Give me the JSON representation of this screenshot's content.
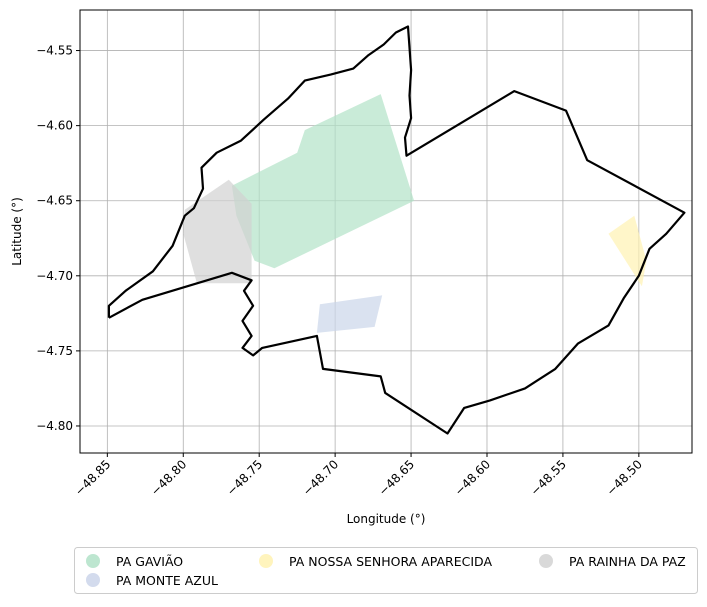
{
  "chart_data": {
    "type": "map",
    "xlabel": "Longitude (°)",
    "ylabel": "Latitude (°)",
    "xlim": [
      -48.868,
      -48.465
    ],
    "ylim": [
      -4.818,
      -4.523
    ],
    "xticks": [
      -48.85,
      -48.8,
      -48.75,
      -48.7,
      -48.65,
      -48.6,
      -48.55,
      -48.5
    ],
    "xtick_labels": [
      "−48.85",
      "−48.80",
      "−48.75",
      "−48.70",
      "−48.65",
      "−48.60",
      "−48.55",
      "−48.50"
    ],
    "yticks": [
      -4.55,
      -4.6,
      -4.65,
      -4.7,
      -4.75,
      -4.8
    ],
    "ytick_labels": [
      "−4.55",
      "−4.60",
      "−4.65",
      "−4.70",
      "−4.75",
      "−4.80"
    ],
    "grid": true,
    "legend_position": "bottom",
    "boundary_color": "#000000",
    "boundary": [
      [
        -48.849,
        -4.728
      ],
      [
        -48.827,
        -4.716
      ],
      [
        -48.768,
        -4.698
      ],
      [
        -48.755,
        -4.703
      ],
      [
        -48.76,
        -4.71
      ],
      [
        -48.754,
        -4.72
      ],
      [
        -48.761,
        -4.73
      ],
      [
        -48.755,
        -4.74
      ],
      [
        -48.761,
        -4.748
      ],
      [
        -48.754,
        -4.753
      ],
      [
        -48.748,
        -4.748
      ],
      [
        -48.712,
        -4.74
      ],
      [
        -48.708,
        -4.762
      ],
      [
        -48.67,
        -4.767
      ],
      [
        -48.667,
        -4.778
      ],
      [
        -48.626,
        -4.805
      ],
      [
        -48.615,
        -4.788
      ],
      [
        -48.598,
        -4.783
      ],
      [
        -48.575,
        -4.775
      ],
      [
        -48.555,
        -4.762
      ],
      [
        -48.54,
        -4.745
      ],
      [
        -48.52,
        -4.733
      ],
      [
        -48.51,
        -4.715
      ],
      [
        -48.5,
        -4.7
      ],
      [
        -48.493,
        -4.682
      ],
      [
        -48.482,
        -4.672
      ],
      [
        -48.47,
        -4.658
      ],
      [
        -48.534,
        -4.623
      ],
      [
        -48.548,
        -4.59
      ],
      [
        -48.582,
        -4.577
      ],
      [
        -48.653,
        -4.62
      ],
      [
        -48.654,
        -4.608
      ],
      [
        -48.65,
        -4.595
      ],
      [
        -48.651,
        -4.58
      ],
      [
        -48.65,
        -4.563
      ],
      [
        -48.651,
        -4.548
      ],
      [
        -48.652,
        -4.534
      ],
      [
        -48.66,
        -4.538
      ],
      [
        -48.668,
        -4.546
      ],
      [
        -48.678,
        -4.553
      ],
      [
        -48.688,
        -4.562
      ],
      [
        -48.703,
        -4.566
      ],
      [
        -48.72,
        -4.57
      ],
      [
        -48.731,
        -4.582
      ],
      [
        -48.747,
        -4.596
      ],
      [
        -48.762,
        -4.61
      ],
      [
        -48.778,
        -4.618
      ],
      [
        -48.788,
        -4.628
      ],
      [
        -48.787,
        -4.642
      ],
      [
        -48.793,
        -4.655
      ],
      [
        -48.799,
        -4.66
      ],
      [
        -48.807,
        -4.68
      ],
      [
        -48.82,
        -4.697
      ],
      [
        -48.838,
        -4.71
      ],
      [
        -48.849,
        -4.72
      ],
      [
        -48.849,
        -4.728
      ]
    ],
    "series": [
      {
        "name": "PA GAVIÃO",
        "color": "#b2e2c8",
        "polygon": [
          [
            -48.72,
            -4.603
          ],
          [
            -48.67,
            -4.579
          ],
          [
            -48.648,
            -4.65
          ],
          [
            -48.74,
            -4.695
          ],
          [
            -48.753,
            -4.69
          ],
          [
            -48.765,
            -4.66
          ],
          [
            -48.768,
            -4.64
          ],
          [
            -48.725,
            -4.618
          ]
        ]
      },
      {
        "name": "PA MONTE AZUL",
        "color": "#cbd5ea",
        "polygon": [
          [
            -48.71,
            -4.719
          ],
          [
            -48.669,
            -4.713
          ],
          [
            -48.674,
            -4.734
          ],
          [
            -48.712,
            -4.738
          ]
        ]
      },
      {
        "name": "PA NOSSA SENHORA APARECIDA",
        "color": "#fff2b2",
        "polygon": [
          [
            -48.52,
            -4.672
          ],
          [
            -48.503,
            -4.66
          ],
          [
            -48.495,
            -4.69
          ],
          [
            -48.498,
            -4.707
          ]
        ]
      },
      {
        "name": "PA RAINHA DA PAZ",
        "color": "#d2d2d2",
        "polygon": [
          [
            -48.799,
            -4.656
          ],
          [
            -48.77,
            -4.636
          ],
          [
            -48.755,
            -4.652
          ],
          [
            -48.755,
            -4.705
          ],
          [
            -48.791,
            -4.705
          ],
          [
            -48.8,
            -4.672
          ]
        ]
      }
    ]
  }
}
